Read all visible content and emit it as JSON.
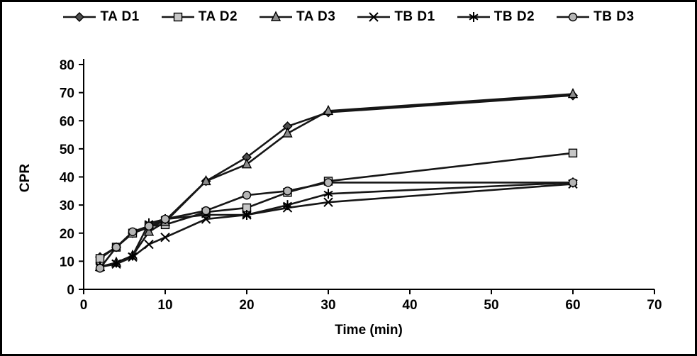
{
  "chart_data": {
    "type": "line",
    "title": "",
    "xlabel": "Time (min)",
    "ylabel": "CPR",
    "xlim": [
      0,
      70
    ],
    "ylim": [
      0,
      80
    ],
    "xticks": [
      0,
      10,
      20,
      30,
      40,
      50,
      60,
      70
    ],
    "yticks": [
      0,
      10,
      20,
      30,
      40,
      50,
      60,
      70,
      80
    ],
    "grid": false,
    "legend_position": "top",
    "line_color": "#161616",
    "x": [
      2,
      4,
      6,
      8,
      10,
      15,
      20,
      25,
      30,
      60
    ],
    "series": [
      {
        "name": "TA D1",
        "marker": "diamond",
        "marker_fill": "#4d4d4d",
        "values": [
          11.5,
          15,
          20,
          22,
          24.5,
          38.5,
          47,
          58,
          63,
          69
        ]
      },
      {
        "name": "TA D2",
        "marker": "square",
        "marker_fill": "#c6c6c6",
        "values": [
          11,
          15,
          20,
          22.5,
          23,
          27.5,
          29,
          34.5,
          38.5,
          48.5
        ]
      },
      {
        "name": "TA D3",
        "marker": "triangle",
        "marker_fill": "#8c8c8c",
        "values": [
          8,
          9.5,
          12,
          20.5,
          24,
          38.5,
          44.5,
          55.5,
          63.5,
          69.5
        ]
      },
      {
        "name": "TB D1",
        "marker": "x",
        "marker_fill": "#000000",
        "values": [
          8,
          9,
          11.5,
          16,
          18.5,
          25,
          26.5,
          29,
          31,
          37.5
        ]
      },
      {
        "name": "TB D2",
        "marker": "asterisk",
        "marker_fill": "#000000",
        "values": [
          8,
          9.5,
          12,
          23.5,
          25,
          26.5,
          26.5,
          30,
          34,
          38
        ]
      },
      {
        "name": "TB D3",
        "marker": "circle",
        "marker_fill": "#b5b5b5",
        "values": [
          7.5,
          15,
          20.5,
          22.5,
          25,
          28,
          33.5,
          35,
          38,
          38
        ]
      }
    ]
  }
}
